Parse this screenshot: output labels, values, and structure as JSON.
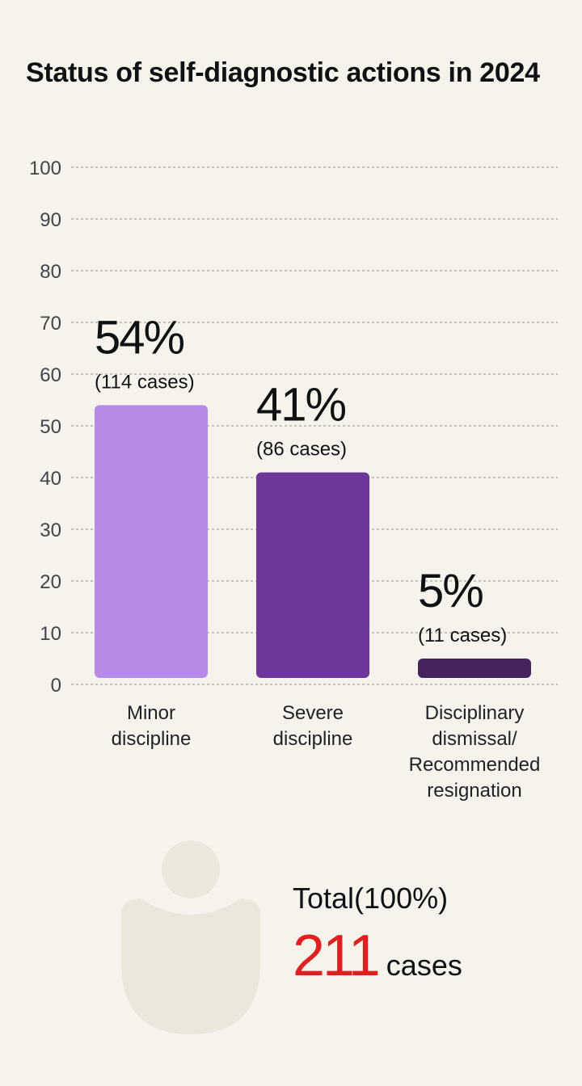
{
  "title": "Status of self-diagnostic actions in 2024",
  "chart_data": {
    "type": "bar",
    "title": "Status of self-diagnostic actions in 2024",
    "categories": [
      [
        "Minor",
        "discipline"
      ],
      [
        "Severe",
        "discipline"
      ],
      [
        "Disciplinary",
        "dismissal/",
        "Recommended",
        "resignation"
      ]
    ],
    "values": [
      54,
      41,
      5
    ],
    "value_labels": [
      "54%",
      "41%",
      "5%"
    ],
    "case_labels": [
      "(114 cases)",
      "(86 cases)",
      "(11 cases)"
    ],
    "colors": [
      "#b78ae8",
      "#6f3699",
      "#44235e"
    ],
    "ylim": [
      0,
      100
    ],
    "yticks": [
      0,
      10,
      20,
      30,
      40,
      50,
      60,
      70,
      80,
      90,
      100
    ],
    "grid": true
  },
  "total": {
    "label": "Total(100%)",
    "value": "211",
    "unit": "cases"
  },
  "colors": {
    "background": "#f5f3ec",
    "accent": "#e02020",
    "person_icon": "#ebe7dc"
  }
}
